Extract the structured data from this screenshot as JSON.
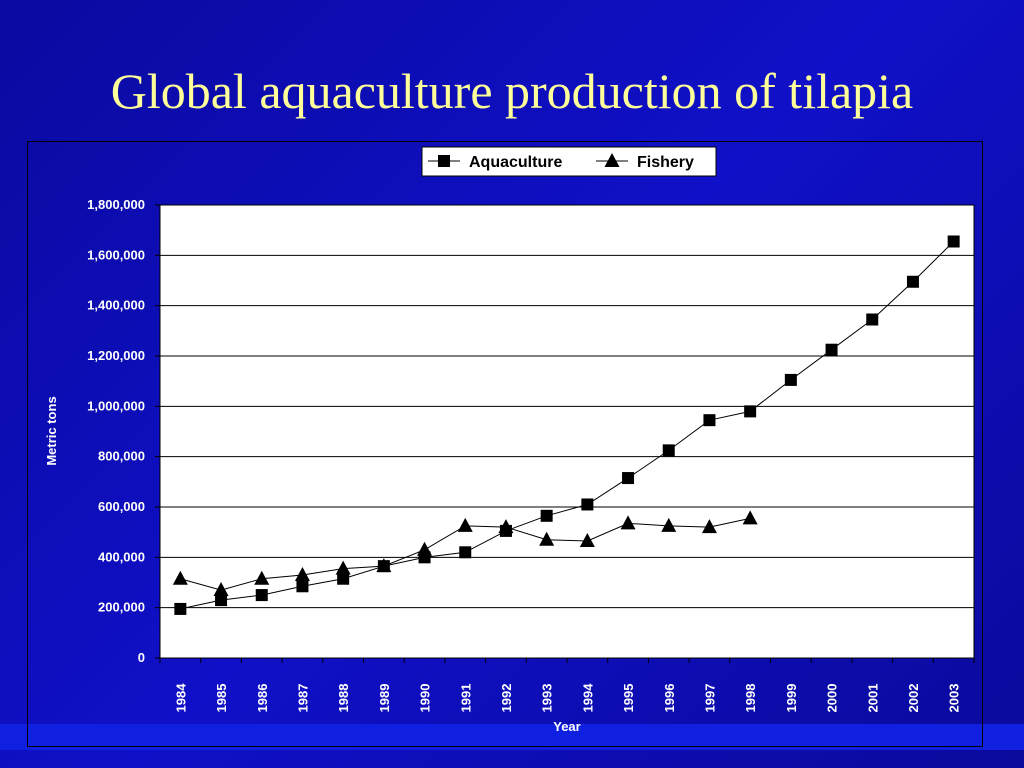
{
  "slide": {
    "title": "Global aquaculture production of tilapia"
  },
  "chart_data": {
    "type": "line",
    "ylabel": "Metric tons",
    "xlabel": "Year",
    "ylim": [
      0,
      1800000
    ],
    "yticks": [
      0,
      200000,
      400000,
      600000,
      800000,
      1000000,
      1200000,
      1400000,
      1600000,
      1800000
    ],
    "ytick_labels": [
      "0",
      "200,000",
      "400,000",
      "600,000",
      "800,000",
      "1,000,000",
      "1,200,000",
      "1,400,000",
      "1,600,000",
      "1,800,000"
    ],
    "categories": [
      "1984",
      "1985",
      "1986",
      "1987",
      "1988",
      "1989",
      "1990",
      "1991",
      "1992",
      "1993",
      "1994",
      "1995",
      "1996",
      "1997",
      "1998",
      "1999",
      "2000",
      "2001",
      "2002",
      "2003"
    ],
    "grid": "horizontal",
    "legend_placement": "top-center",
    "series": [
      {
        "name": "Aquaculture",
        "marker": "square",
        "values": [
          195000,
          230000,
          250000,
          285000,
          315000,
          365000,
          400000,
          420000,
          505000,
          565000,
          610000,
          715000,
          825000,
          945000,
          980000,
          1105000,
          1225000,
          1345000,
          1495000,
          1655000
        ]
      },
      {
        "name": "Fishery",
        "marker": "triangle",
        "values": [
          315000,
          270000,
          315000,
          330000,
          355000,
          365000,
          430000,
          525000,
          520000,
          470000,
          465000,
          535000,
          525000,
          520000,
          555000,
          null,
          null,
          null,
          null,
          null
        ]
      }
    ]
  }
}
